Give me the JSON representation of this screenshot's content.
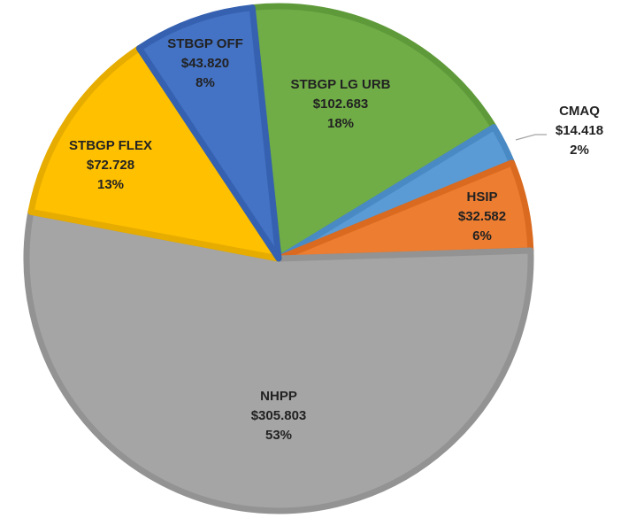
{
  "chart_data": {
    "type": "pie",
    "categories": [
      "STBGP LG URB",
      "CMAQ",
      "HSIP",
      "NHPP",
      "STBGP FLEX",
      "STBGP OFF"
    ],
    "values": [
      102.683,
      14.418,
      32.582,
      305.803,
      72.728,
      43.82
    ],
    "value_labels": [
      "$102.683",
      "$14.418",
      "$32.582",
      "$305.803",
      "$72.728",
      "$43.820"
    ],
    "percents": [
      18,
      2,
      6,
      53,
      13,
      8
    ],
    "percent_labels": [
      "18%",
      "2%",
      "6%",
      "53%",
      "13%",
      "8%"
    ],
    "colors": [
      "#70ad47",
      "#5b9bd5",
      "#ed7d31",
      "#a5a5a5",
      "#ffc000",
      "#4472c4"
    ],
    "border_colors": [
      "#5f9a3a",
      "#4a8ac4",
      "#d96a20",
      "#939393",
      "#e6ac00",
      "#3561b0"
    ]
  }
}
